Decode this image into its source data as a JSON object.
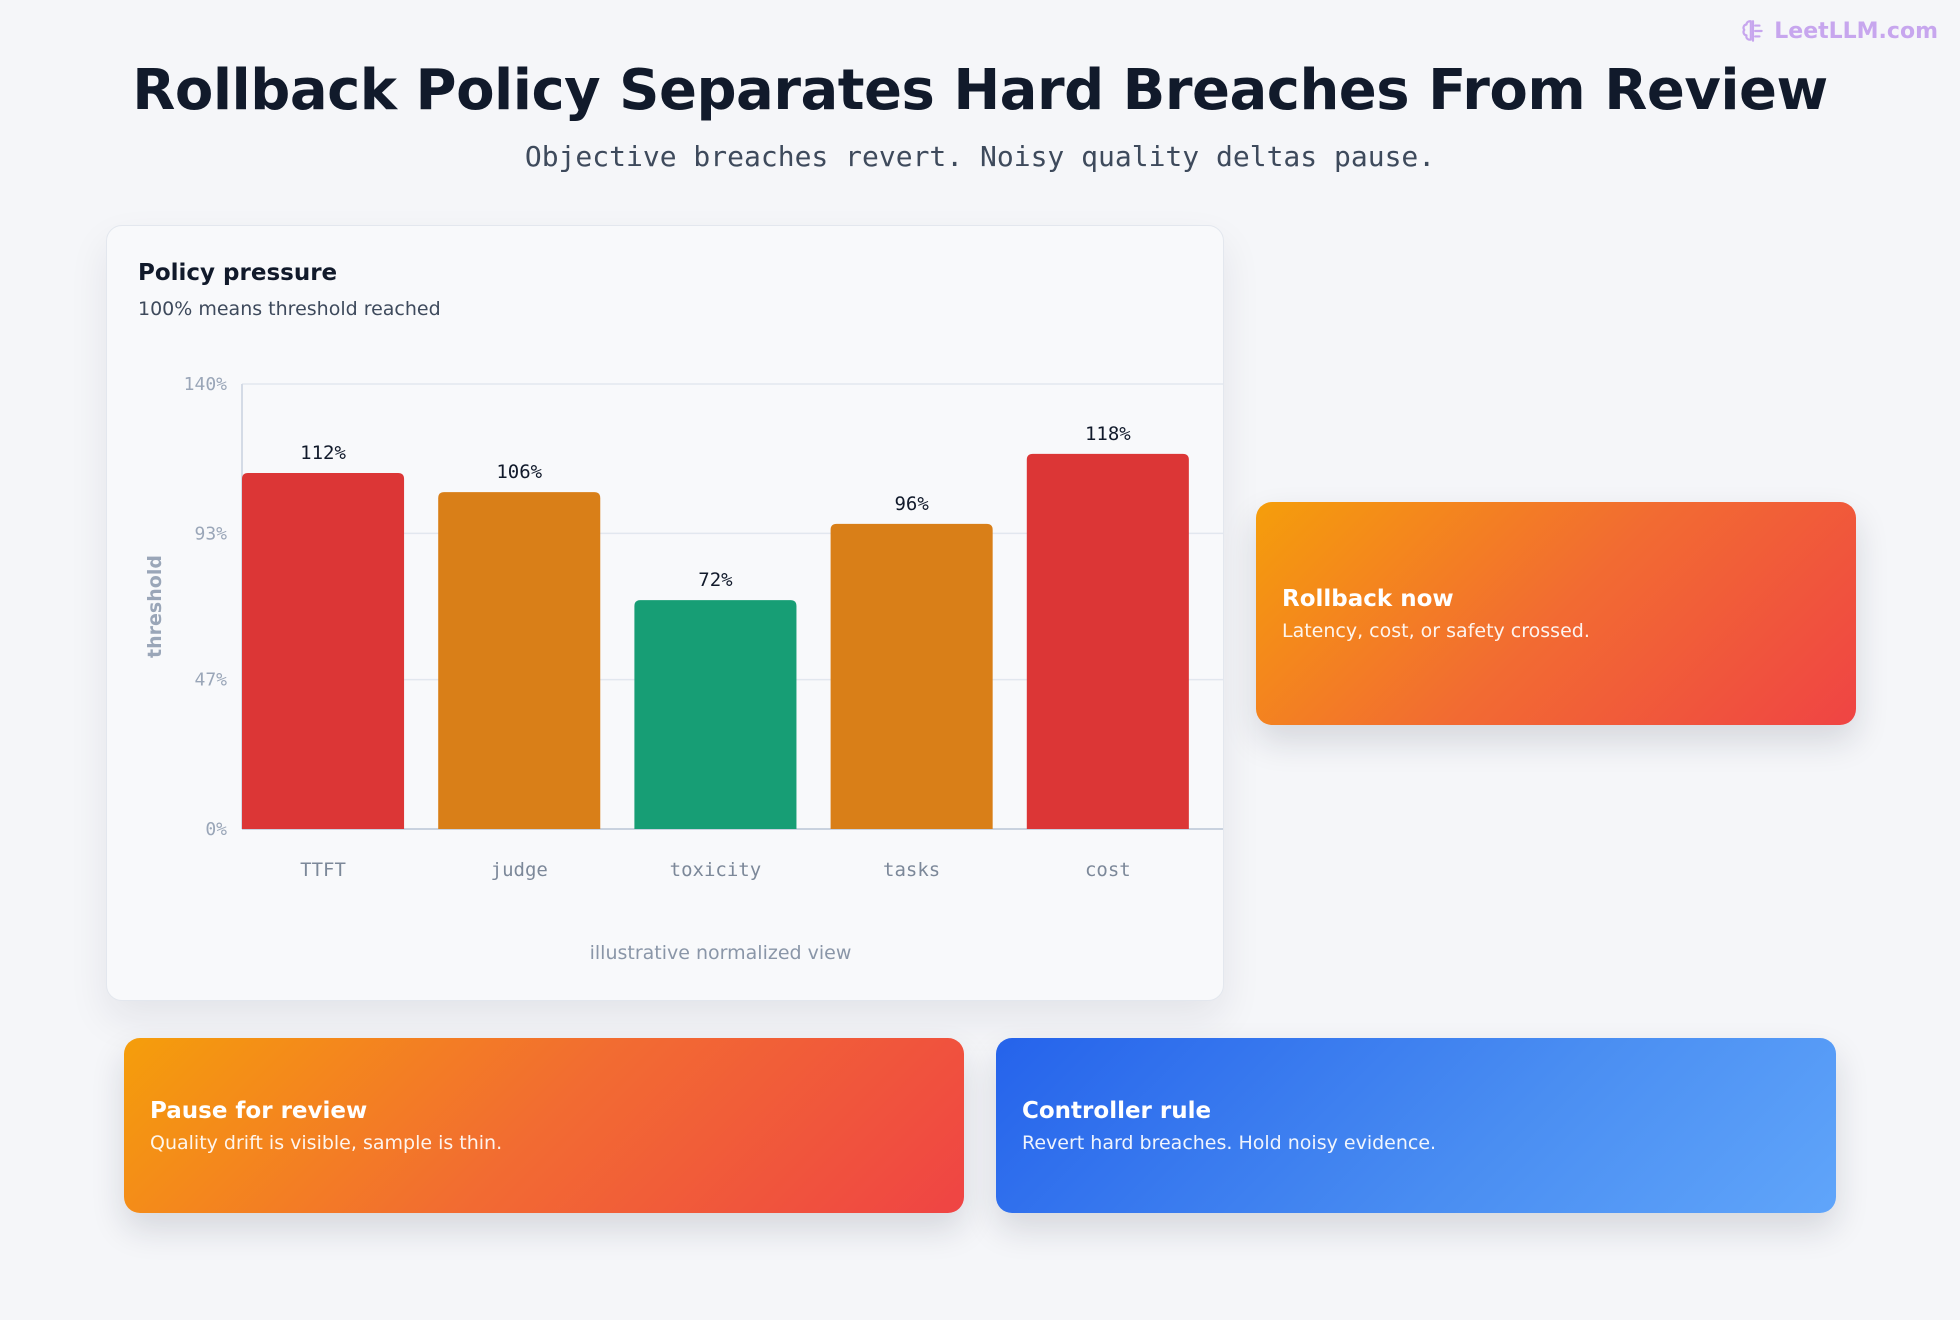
{
  "brand": {
    "name": "LeetLLM.com",
    "icon": "brain-icon"
  },
  "header": {
    "title": "Rollback Policy Separates Hard Breaches From Review",
    "subtitle": "Objective breaches revert. Noisy quality deltas pause."
  },
  "chart_card": {
    "title": "Policy pressure",
    "subtitle": "100% means threshold reached",
    "note": "illustrative normalized view"
  },
  "chart_data": {
    "type": "bar",
    "categories": [
      "TTFT",
      "judge",
      "toxicity",
      "tasks",
      "cost"
    ],
    "values": [
      112,
      106,
      72,
      96,
      118
    ],
    "value_labels": [
      "112%",
      "106%",
      "72%",
      "96%",
      "118%"
    ],
    "colors": [
      "#dc3636",
      "#d97f18",
      "#179e75",
      "#d97f18",
      "#dc3636"
    ],
    "ylabel": "threshold",
    "ylim": [
      0,
      140
    ],
    "yticks": [
      0,
      47,
      93,
      140
    ],
    "ytick_labels": [
      "0%",
      "47%",
      "93%",
      "140%"
    ],
    "grid": true,
    "legend": "none"
  },
  "callouts": {
    "rollback": {
      "title": "Rollback now",
      "body": "Latency, cost, or safety crossed."
    },
    "pause": {
      "title": "Pause for review",
      "body": "Quality drift is visible, sample is thin."
    },
    "rule": {
      "title": "Controller rule",
      "body": "Revert hard breaches. Hold noisy evidence."
    }
  }
}
